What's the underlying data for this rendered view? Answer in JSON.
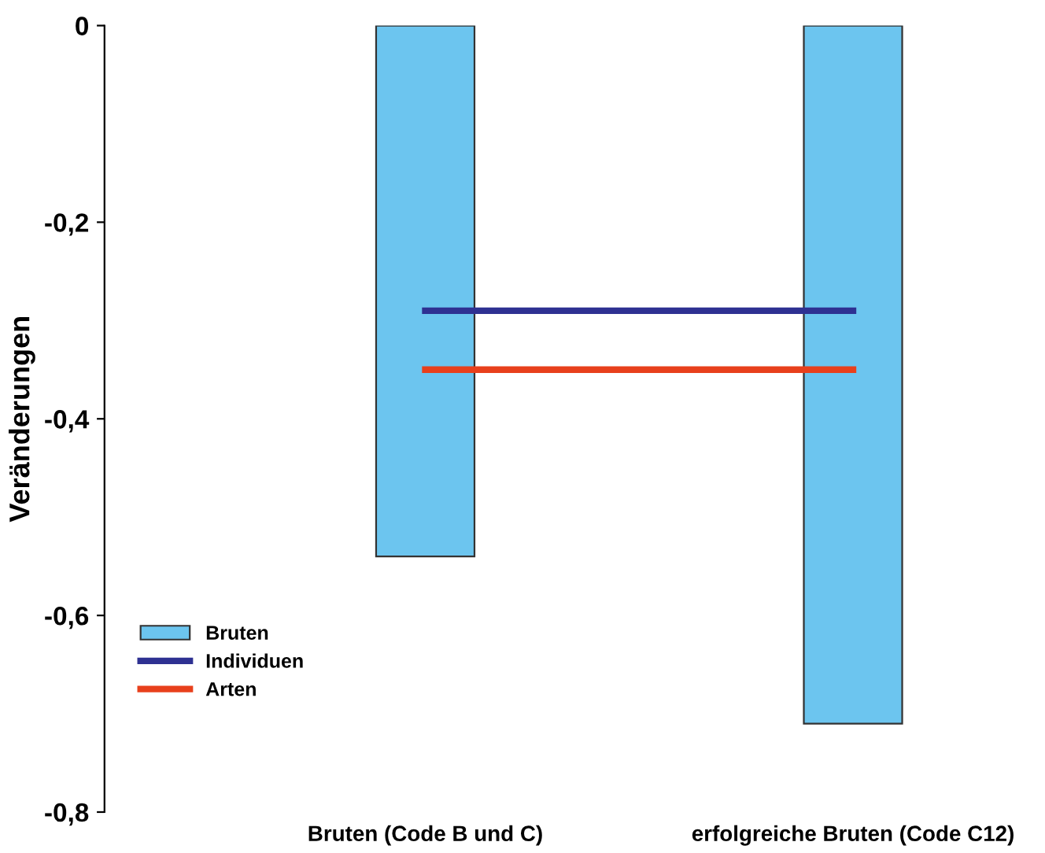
{
  "chart_data": {
    "type": "bar",
    "ylabel": "Veränderungen",
    "categories": [
      "Bruten (Code B und C)",
      "erfolgreiche Bruten (Code C12)"
    ],
    "series": [
      {
        "name": "Bruten",
        "color": "#6cc5ef",
        "values": [
          -0.54,
          -0.71
        ]
      },
      {
        "name": "Individuen",
        "type": "line",
        "color": "#2e3192",
        "values": [
          -0.29,
          -0.29
        ]
      },
      {
        "name": "Arten",
        "type": "line",
        "color": "#e8401c",
        "values": [
          -0.35,
          -0.35
        ]
      }
    ],
    "ylim": [
      -0.8,
      0
    ],
    "yticks": [
      {
        "value": -0.8,
        "label": "-0,8"
      },
      {
        "value": -0.6,
        "label": "-0,6"
      },
      {
        "value": -0.4,
        "label": "-0,4"
      },
      {
        "value": -0.2,
        "label": "-0,2"
      },
      0
    ],
    "grid": false,
    "legend": "bottom left",
    "marker": "none",
    "line_style": "solid"
  }
}
